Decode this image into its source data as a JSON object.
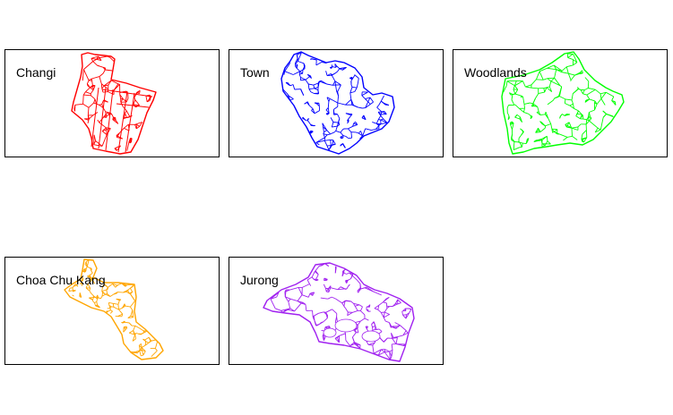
{
  "panels": [
    {
      "name": "Changi",
      "color": "#ff0000"
    },
    {
      "name": "Town",
      "color": "#0000ff"
    },
    {
      "name": "Woodlands",
      "color": "#00ff00"
    },
    {
      "name": "Choa Chu Kang",
      "color": "#ffa500"
    },
    {
      "name": "Jurong",
      "color": "#a020f0"
    }
  ]
}
